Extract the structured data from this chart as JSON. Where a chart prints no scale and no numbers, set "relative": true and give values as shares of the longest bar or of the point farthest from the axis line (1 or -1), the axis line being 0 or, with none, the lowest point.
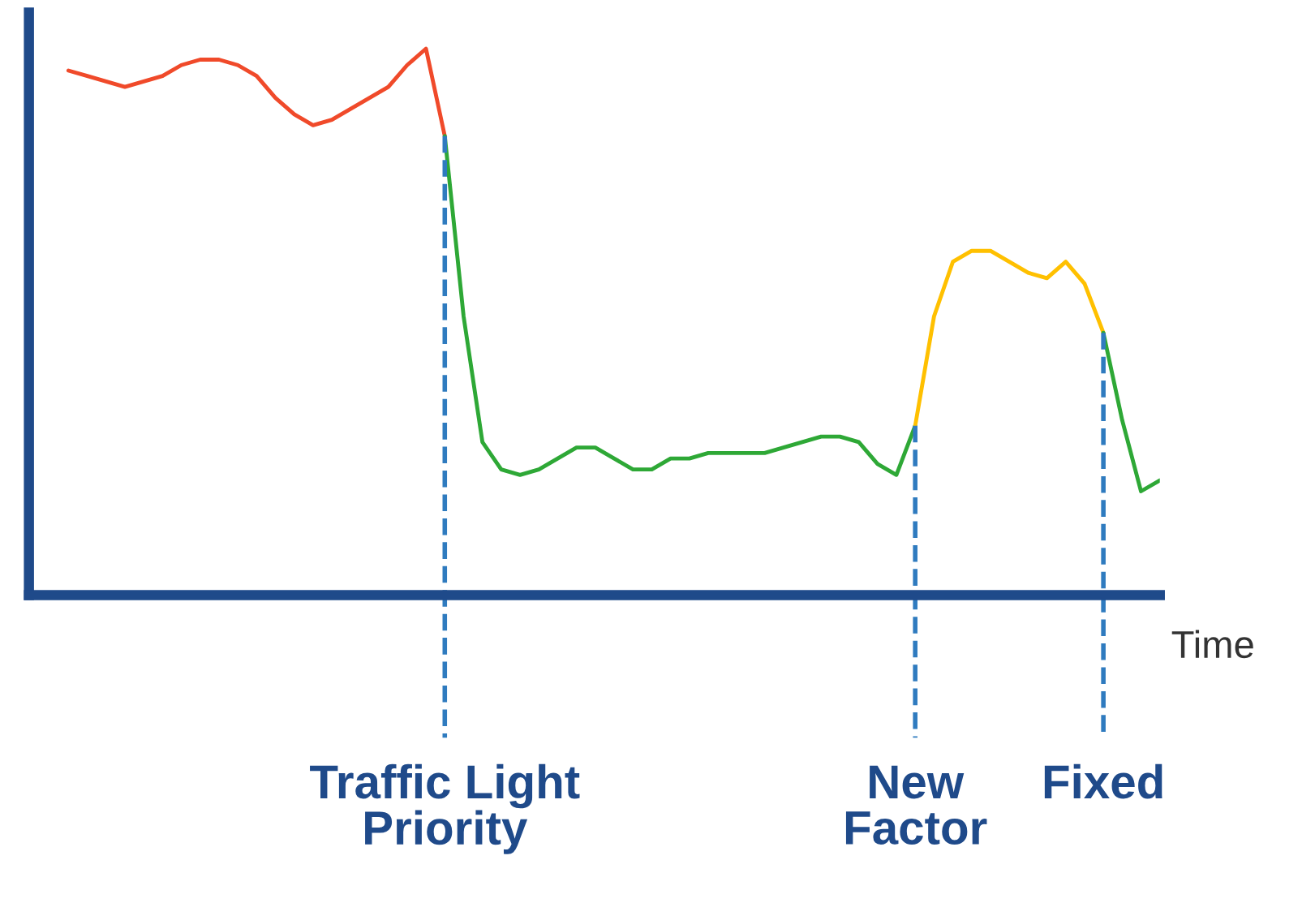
{
  "chart_data": {
    "type": "line",
    "relative": true,
    "xlabel": "Time",
    "legend": false,
    "grid": false,
    "marker": "none",
    "line_style": "solid",
    "categories": [
      null,
      null,
      null,
      null,
      null,
      null,
      null,
      null,
      null,
      null,
      null,
      null,
      null,
      null,
      null,
      null,
      null,
      null,
      null,
      null,
      null,
      null,
      null,
      null,
      null,
      null,
      null,
      null,
      null,
      null,
      null,
      null,
      null,
      null,
      null,
      null,
      null,
      null,
      null,
      null,
      null,
      null,
      null,
      null,
      null,
      null,
      null,
      null,
      null,
      null,
      null,
      null,
      null,
      null,
      null,
      null,
      null,
      null,
      null
    ],
    "series": [
      {
        "color": "#f04a2a",
        "values": [
          0.96,
          0.95,
          0.94,
          0.93,
          0.94,
          0.95,
          0.97,
          0.98,
          0.98,
          0.97,
          0.95,
          0.91,
          0.88,
          0.86,
          0.87,
          0.89,
          0.91,
          0.93,
          0.97,
          1.0,
          0.84,
          null,
          null,
          null,
          null,
          null,
          null,
          null,
          null,
          null,
          null,
          null,
          null,
          null,
          null,
          null,
          null,
          null,
          null,
          null,
          null,
          null,
          null,
          null,
          null,
          null,
          null,
          null,
          null,
          null,
          null,
          null,
          null,
          null,
          null,
          null,
          null,
          null,
          null
        ]
      },
      {
        "color": "#2ea836",
        "values": [
          null,
          null,
          null,
          null,
          null,
          null,
          null,
          null,
          null,
          null,
          null,
          null,
          null,
          null,
          null,
          null,
          null,
          null,
          null,
          null,
          0.84,
          0.51,
          0.28,
          0.23,
          0.22,
          0.23,
          0.25,
          0.27,
          0.27,
          0.25,
          0.23,
          0.23,
          0.25,
          0.25,
          0.26,
          0.26,
          0.26,
          0.26,
          0.27,
          0.28,
          0.29,
          0.29,
          0.28,
          0.24,
          0.22,
          0.31,
          null,
          null,
          null,
          null,
          null,
          null,
          null,
          null,
          null,
          null,
          null,
          null,
          null
        ]
      },
      {
        "color": "#ffc000",
        "values": [
          null,
          null,
          null,
          null,
          null,
          null,
          null,
          null,
          null,
          null,
          null,
          null,
          null,
          null,
          null,
          null,
          null,
          null,
          null,
          null,
          null,
          null,
          null,
          null,
          null,
          null,
          null,
          null,
          null,
          null,
          null,
          null,
          null,
          null,
          null,
          null,
          null,
          null,
          null,
          null,
          null,
          null,
          null,
          null,
          null,
          0.31,
          0.51,
          0.61,
          0.63,
          0.63,
          0.61,
          0.59,
          0.58,
          0.61,
          0.57,
          0.48,
          null,
          null,
          null
        ]
      },
      {
        "color": "#2ea836",
        "values": [
          null,
          null,
          null,
          null,
          null,
          null,
          null,
          null,
          null,
          null,
          null,
          null,
          null,
          null,
          null,
          null,
          null,
          null,
          null,
          null,
          null,
          null,
          null,
          null,
          null,
          null,
          null,
          null,
          null,
          null,
          null,
          null,
          null,
          null,
          null,
          null,
          null,
          null,
          null,
          null,
          null,
          null,
          null,
          null,
          null,
          null,
          null,
          null,
          null,
          null,
          null,
          null,
          null,
          null,
          null,
          0.48,
          0.32,
          0.19,
          0.21
        ]
      }
    ],
    "annotations": [
      "Traffic Light\nPriority",
      "New\nFactor",
      "Fixed"
    ]
  }
}
